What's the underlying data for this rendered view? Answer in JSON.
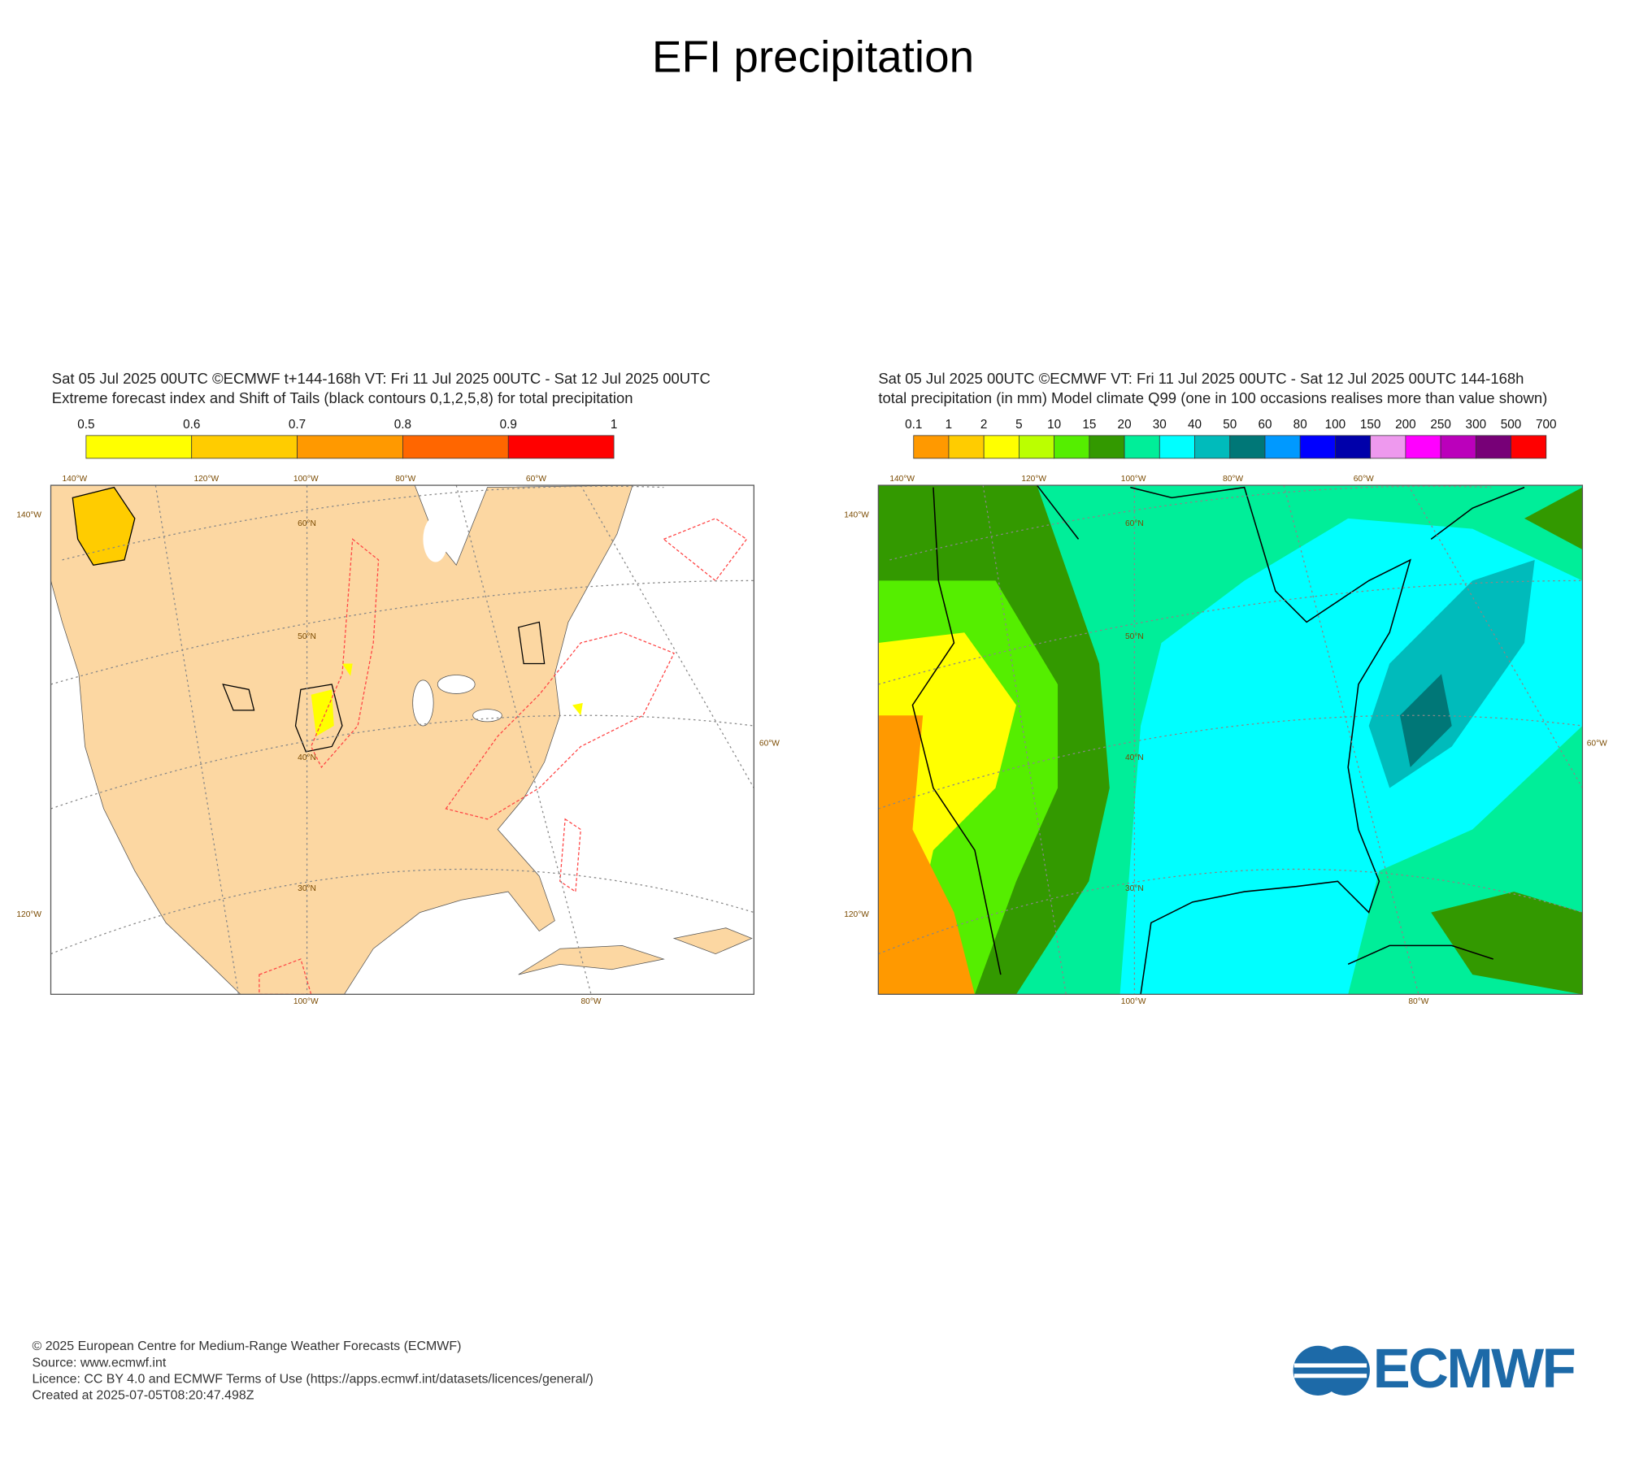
{
  "title": "EFI precipitation",
  "panels": [
    {
      "header": [
        "Sat 05 Jul 2025 00UTC ©ECMWF t+144-168h  VT: Fri 11 Jul 2025 00UTC - Sat 12 Jul 2025 00UTC",
        "Extreme forecast index and Shift of Tails (black contours 0,1,2,5,8) for total precipitation"
      ],
      "colorbar": {
        "labels": [
          "0.5",
          "0.6",
          "0.7",
          "0.8",
          "0.9",
          "1"
        ],
        "colors": [
          "#ffff00",
          "#ffcc00",
          "#ff9900",
          "#ff6600",
          "#ff0000"
        ]
      },
      "lon_top": [
        "140°W",
        "120°W",
        "100°W",
        "80°W",
        "60°W"
      ],
      "lon_bottom": [
        "100°W",
        "80°W"
      ],
      "lon_left": [
        "140°W",
        "120°W"
      ],
      "lon_right": [
        "60°W"
      ],
      "lat": [
        "60°N",
        "50°N",
        "40°N",
        "30°N"
      ]
    },
    {
      "header": [
        "Sat 05 Jul 2025 00UTC ©ECMWF VT: Fri 11 Jul 2025 00UTC - Sat 12 Jul 2025 00UTC   144-168h",
        "total precipitation (in mm)  Model climate Q99 (one in 100 occasions realises more than value shown)"
      ],
      "colorbar": {
        "labels": [
          "0.1",
          "1",
          "2",
          "5",
          "10",
          "15",
          "20",
          "30",
          "40",
          "50",
          "60",
          "80",
          "100",
          "150",
          "200",
          "250",
          "300",
          "500",
          "700"
        ],
        "colors": [
          "#ff9900",
          "#ffcc00",
          "#ffff00",
          "#bbff00",
          "#55ee00",
          "#339900",
          "#00ee99",
          "#00ffff",
          "#00bbbb",
          "#007777",
          "#0099ff",
          "#0000ff",
          "#0000aa",
          "#ee99ee",
          "#ff00ff",
          "#bb00bb",
          "#770077",
          "#ff0000"
        ]
      },
      "lon_top": [
        "140°W",
        "120°W",
        "100°W",
        "80°W",
        "60°W"
      ],
      "lon_bottom": [
        "100°W",
        "80°W"
      ],
      "lon_left": [
        "140°W",
        "120°W"
      ],
      "lon_right": [
        "60°W"
      ],
      "lat": [
        "60°N",
        "50°N",
        "40°N",
        "30°N"
      ]
    }
  ],
  "footer": [
    "© 2025 European Centre for Medium-Range Weather Forecasts (ECMWF)",
    "Source: www.ecmwf.int",
    "Licence: CC BY 4.0 and ECMWF Terms of Use (https://apps.ecmwf.int/datasets/licences/general/)",
    "Created at 2025-07-05T08:20:47.498Z"
  ],
  "logo": "ECMWF"
}
